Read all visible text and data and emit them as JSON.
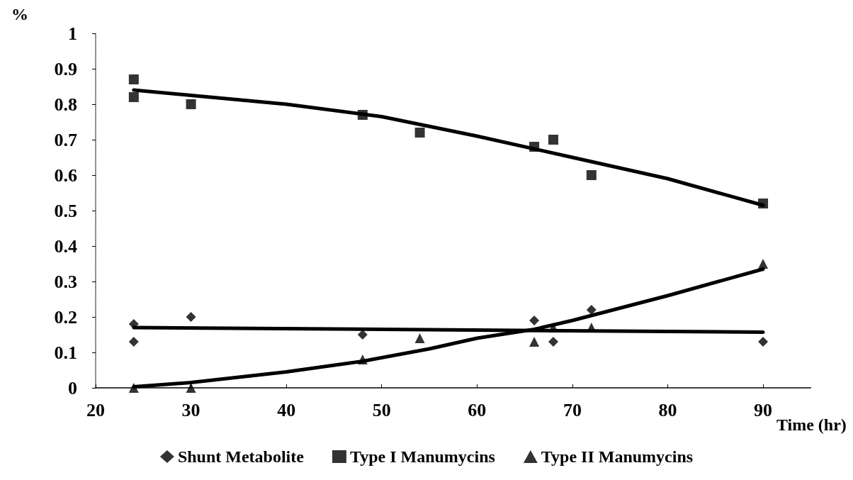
{
  "chart_data": {
    "type": "scatter",
    "xlabel": "Time (hr)",
    "ylabel": "%",
    "xlim": [
      20,
      95
    ],
    "xticks": [
      20,
      30,
      40,
      50,
      60,
      70,
      80,
      90
    ],
    "ylim": [
      0,
      1
    ],
    "yticks": [
      0,
      0.1,
      0.2,
      0.3,
      0.4,
      0.5,
      0.6,
      0.7,
      0.8,
      0.9,
      1
    ],
    "grid": false,
    "legend": "bottom",
    "series": [
      {
        "name": "Shunt Metabolite",
        "color": "#000000",
        "marker": "diamond",
        "x": [
          24,
          24,
          30,
          48,
          66,
          68,
          72,
          90
        ],
        "values": [
          0.18,
          0.13,
          0.2,
          0.15,
          0.19,
          0.13,
          0.22,
          0.13
        ]
      },
      {
        "name": "Type I Manumycins",
        "color": "#000000",
        "marker": "square",
        "x": [
          24,
          24,
          30,
          48,
          54,
          66,
          68,
          72,
          90
        ],
        "values": [
          0.87,
          0.82,
          0.8,
          0.77,
          0.72,
          0.68,
          0.7,
          0.6,
          0.52
        ]
      },
      {
        "name": "Type II Manumycins",
        "color": "#000000",
        "marker": "triangle",
        "x": [
          24,
          30,
          48,
          54,
          66,
          68,
          72,
          90
        ],
        "values": [
          0,
          0,
          0.08,
          0.14,
          0.13,
          0.17,
          0.17,
          0.35
        ]
      },
      {
        "type": "line",
        "color": "#000000",
        "marker": "none",
        "x": [
          24,
          90
        ],
        "values": [
          0.17,
          0.157
        ]
      },
      {
        "type": "line",
        "color": "#000000",
        "marker": "none",
        "x": [
          24,
          30,
          40,
          50,
          60,
          70,
          80,
          90
        ],
        "values": [
          0.84,
          0.825,
          0.8,
          0.765,
          0.71,
          0.65,
          0.59,
          0.515
        ]
      },
      {
        "type": "line",
        "color": "#000000",
        "marker": "none",
        "x": [
          24,
          30,
          40,
          48,
          55,
          60,
          66,
          70,
          80,
          90
        ],
        "values": [
          0.003,
          0.015,
          0.045,
          0.075,
          0.11,
          0.14,
          0.165,
          0.19,
          0.26,
          0.335
        ]
      }
    ]
  }
}
